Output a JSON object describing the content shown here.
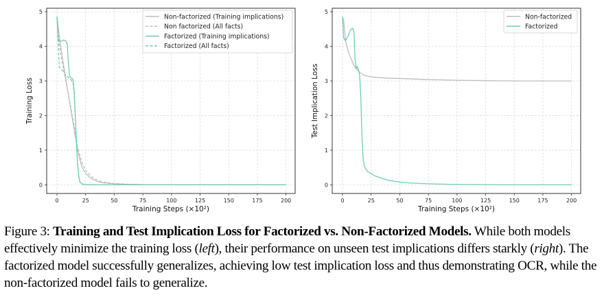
{
  "chart_data": [
    {
      "type": "line",
      "panel": "left",
      "title": "",
      "xlabel": "Training Steps (×10²)",
      "ylabel": "Training Loss",
      "xlim": [
        -9,
        208
      ],
      "ylim": [
        -0.25,
        5.1
      ],
      "xticks": [
        0,
        25,
        50,
        75,
        100,
        125,
        150,
        175,
        200
      ],
      "yticks": [
        0,
        1,
        2,
        3,
        4,
        5
      ],
      "grid": true,
      "legend_position": "top-right",
      "series": [
        {
          "name": "Non-factorized (Training implications)",
          "color": "#bdbdbd",
          "dash": "solid",
          "x": [
            0,
            2,
            5,
            8,
            10,
            12,
            15,
            18,
            20,
            22,
            25,
            30,
            35,
            40,
            50,
            60,
            75,
            100,
            150,
            200
          ],
          "y": [
            4.85,
            4.3,
            3.6,
            3.0,
            2.6,
            2.2,
            1.6,
            1.0,
            0.72,
            0.5,
            0.33,
            0.18,
            0.1,
            0.06,
            0.03,
            0.015,
            0.005,
            0.0,
            0.0,
            0.0
          ]
        },
        {
          "name": "Non factorized (All facts)",
          "color": "#bdbdbd",
          "dash": "dashed",
          "x": [
            0,
            2,
            5,
            8,
            10,
            12,
            15,
            18,
            20,
            22,
            25,
            30,
            35,
            40,
            50,
            60,
            75,
            100,
            150,
            200
          ],
          "y": [
            4.85,
            4.05,
            3.45,
            2.95,
            2.6,
            2.25,
            1.7,
            1.1,
            0.85,
            0.62,
            0.42,
            0.24,
            0.14,
            0.08,
            0.04,
            0.02,
            0.006,
            0.0,
            0.0,
            0.0
          ]
        },
        {
          "name": "Factorized (Training implications)",
          "color": "#6fcfaa",
          "dash": "solid",
          "x": [
            0,
            1,
            2,
            4,
            6,
            8,
            9,
            10,
            11,
            12,
            14,
            15,
            16,
            17,
            18,
            19,
            20,
            22,
            25,
            30,
            50,
            100,
            200
          ],
          "y": [
            4.85,
            4.2,
            4.15,
            4.15,
            4.18,
            4.15,
            4.05,
            3.5,
            3.15,
            3.1,
            3.05,
            2.7,
            2.0,
            1.2,
            0.6,
            0.25,
            0.08,
            0.02,
            0.005,
            0.0,
            0.0,
            0.0,
            0.0
          ]
        },
        {
          "name": "Factorized (All facts)",
          "color": "#6fcfaa",
          "dash": "dashed",
          "x": [
            0,
            1,
            2,
            3,
            5,
            8,
            10,
            12,
            14,
            15,
            16,
            17,
            18,
            19,
            20,
            22,
            25,
            30,
            50,
            100,
            200
          ],
          "y": [
            4.85,
            4.1,
            3.4,
            3.35,
            3.3,
            3.15,
            3.1,
            3.05,
            2.95,
            2.6,
            2.0,
            1.2,
            0.6,
            0.25,
            0.08,
            0.02,
            0.005,
            0.0,
            0.0,
            0.0,
            0.0
          ]
        }
      ]
    },
    {
      "type": "line",
      "panel": "right",
      "title": "",
      "xlabel": "Training Steps (×10²)",
      "ylabel": "Test Implication Loss",
      "xlim": [
        -9,
        208
      ],
      "ylim": [
        -0.25,
        5.1
      ],
      "xticks": [
        0,
        25,
        50,
        75,
        100,
        125,
        150,
        175,
        200
      ],
      "yticks": [
        0,
        1,
        2,
        3,
        4,
        5
      ],
      "grid": true,
      "legend_position": "top-right",
      "series": [
        {
          "name": "Non-factorized",
          "color": "#bdbdbd",
          "dash": "solid",
          "x": [
            0,
            1,
            2,
            3,
            5,
            8,
            10,
            12,
            15,
            18,
            20,
            25,
            30,
            40,
            50,
            75,
            100,
            125,
            150,
            200
          ],
          "y": [
            4.85,
            4.75,
            4.4,
            4.1,
            3.85,
            3.6,
            3.45,
            3.35,
            3.25,
            3.18,
            3.15,
            3.12,
            3.1,
            3.08,
            3.07,
            3.04,
            3.02,
            3.01,
            3.0,
            3.0
          ]
        },
        {
          "name": "Factorized",
          "color": "#6fcfaa",
          "dash": "solid",
          "x": [
            0,
            1,
            2,
            3,
            5,
            7,
            9,
            10,
            11,
            12,
            13,
            14,
            15,
            16,
            17,
            18,
            19,
            20,
            22,
            25,
            28,
            30,
            35,
            40,
            50,
            60,
            75,
            100,
            125,
            150,
            200
          ],
          "y": [
            4.85,
            4.25,
            4.18,
            4.18,
            4.3,
            4.48,
            4.52,
            4.4,
            3.6,
            3.35,
            3.42,
            3.3,
            3.15,
            2.5,
            1.4,
            0.75,
            0.55,
            0.48,
            0.38,
            0.33,
            0.26,
            0.24,
            0.18,
            0.13,
            0.08,
            0.05,
            0.03,
            0.01,
            0.005,
            0.0,
            0.0
          ]
        }
      ]
    }
  ],
  "caption": {
    "label": "Figure 3:",
    "bold_title": "Training and Test Implication Loss for Factorized vs. Non-Factorized Models.",
    "seg1": " While both models effectively minimize the training loss (",
    "italic1": "left",
    "seg2": "), their performance on unseen test implications differs starkly (",
    "italic2": "right",
    "seg3": "). The factorized model successfully generalizes, achieving low test implication loss and thus demonstrating OCR, while the non-factorized model fails to generalize."
  }
}
